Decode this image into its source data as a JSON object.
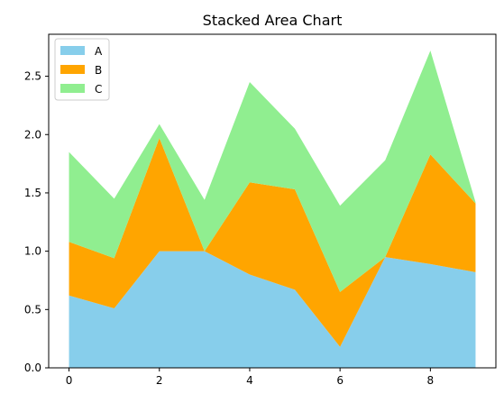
{
  "chart_data": {
    "type": "area",
    "title": "Stacked Area Chart",
    "xlabel": "",
    "ylabel": "",
    "x": [
      0,
      1,
      2,
      3,
      4,
      5,
      6,
      7,
      8,
      9
    ],
    "xlim": [
      -0.45,
      9.45
    ],
    "ylim": [
      0,
      2.86
    ],
    "xticks": [
      0,
      2,
      4,
      6,
      8
    ],
    "yticks": [
      0.0,
      0.5,
      1.0,
      1.5,
      2.0,
      2.5
    ],
    "xtick_labels": [
      "0",
      "2",
      "4",
      "6",
      "8"
    ],
    "ytick_labels": [
      "0.0",
      "0.5",
      "1.0",
      "1.5",
      "2.0",
      "2.5"
    ],
    "stacked": true,
    "grid": false,
    "legend_position": "upper left",
    "series": [
      {
        "name": "A",
        "color": "#87ceeb",
        "values": [
          0.62,
          0.51,
          1.0,
          1.0,
          0.8,
          0.67,
          0.18,
          0.95,
          0.89,
          0.82
        ]
      },
      {
        "name": "B",
        "color": "#ffa500",
        "values": [
          0.46,
          0.43,
          0.97,
          0.0,
          0.79,
          0.86,
          0.47,
          0.0,
          0.94,
          0.59
        ]
      },
      {
        "name": "C",
        "color": "#90ee90",
        "values": [
          0.77,
          0.51,
          0.12,
          0.44,
          0.86,
          0.52,
          0.74,
          0.83,
          0.89,
          0.01
        ]
      }
    ]
  }
}
